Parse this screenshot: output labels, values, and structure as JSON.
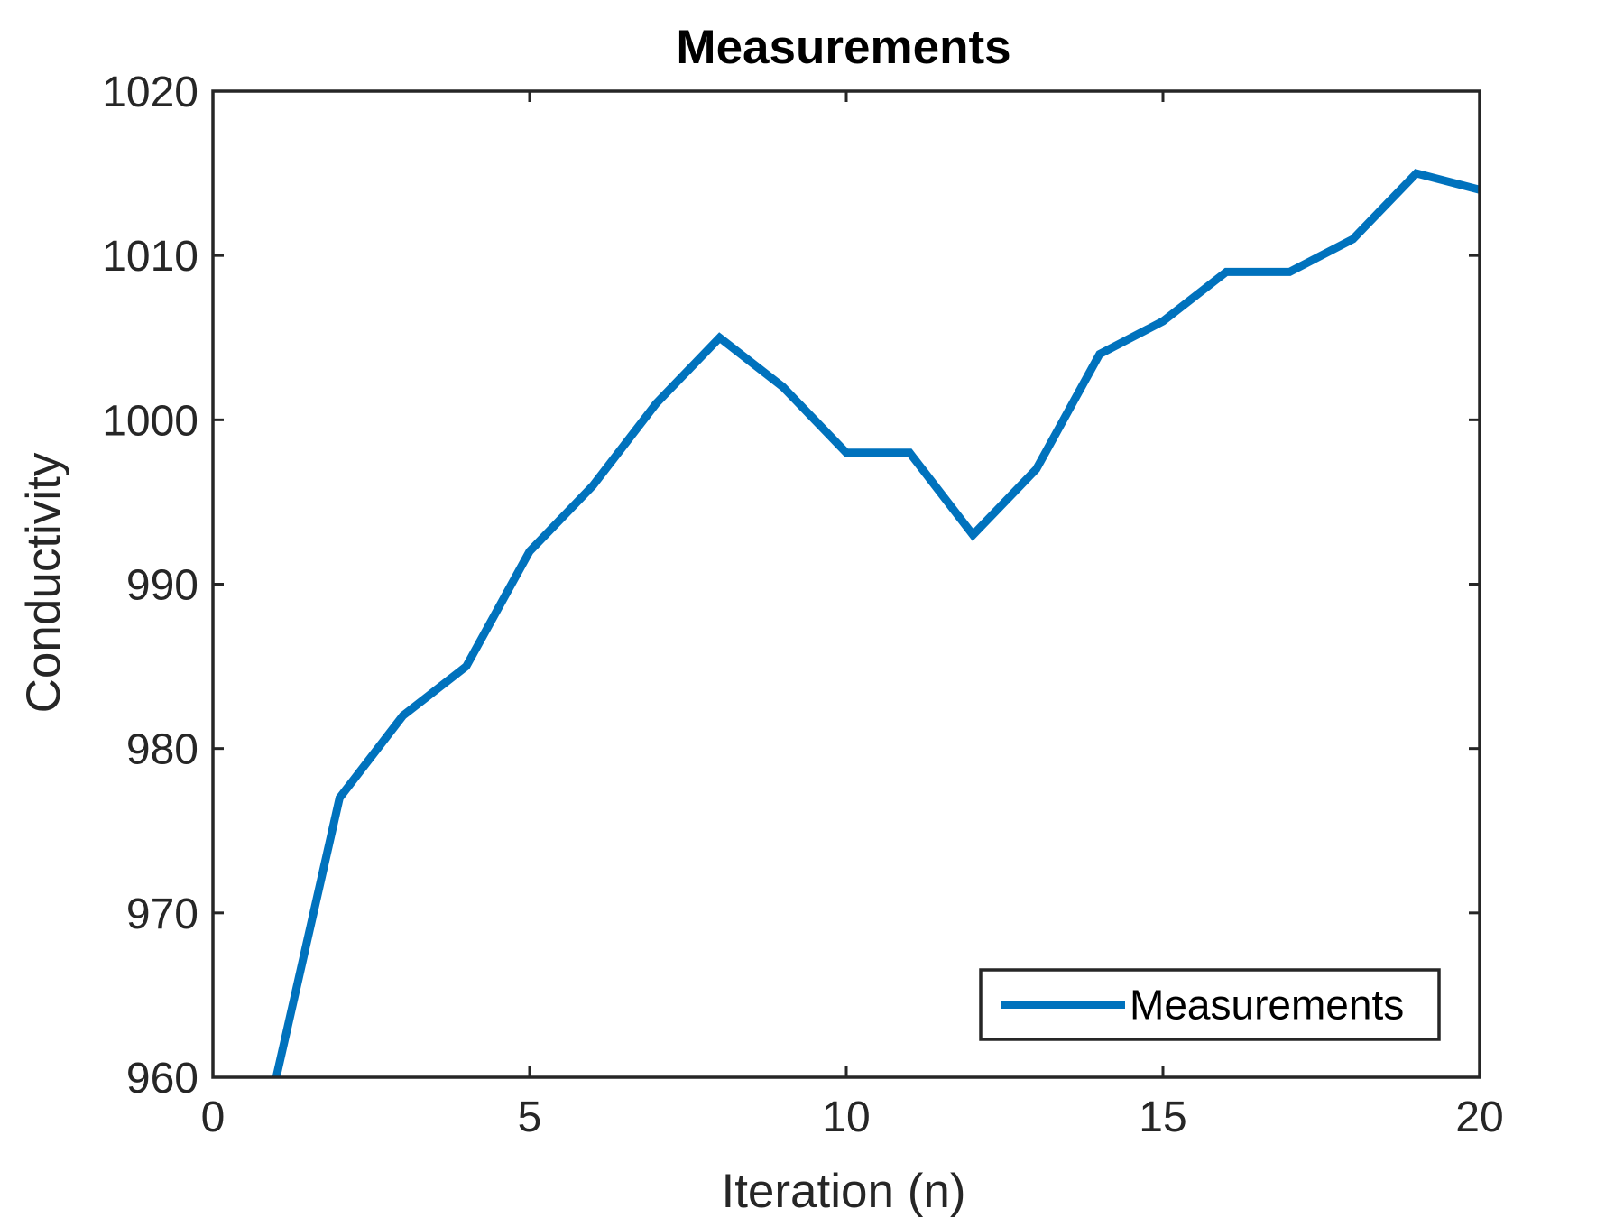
{
  "chart_data": {
    "type": "line",
    "title": "Measurements",
    "xlabel": "Iteration (n)",
    "ylabel": "Conductivity",
    "xlim": [
      0,
      20
    ],
    "ylim": [
      960,
      1020
    ],
    "xticks": [
      0,
      5,
      10,
      15,
      20
    ],
    "yticks": [
      960,
      970,
      980,
      990,
      1000,
      1010,
      1020
    ],
    "grid": false,
    "legend_position": "bottom-right",
    "series": [
      {
        "name": "Measurements",
        "color": "#0072bd",
        "x": [
          1,
          2,
          3,
          4,
          5,
          6,
          7,
          8,
          9,
          10,
          11,
          12,
          13,
          14,
          15,
          16,
          17,
          18,
          19,
          20
        ],
        "y": [
          960,
          977,
          982,
          985,
          992,
          996,
          1001,
          1005,
          1002,
          998,
          998,
          993,
          997,
          1004,
          1006,
          1009,
          1009,
          1011,
          1015,
          1014
        ]
      }
    ]
  }
}
